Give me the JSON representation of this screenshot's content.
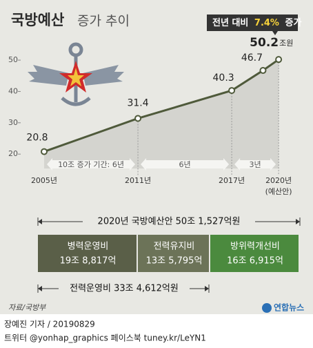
{
  "chart_data": {
    "type": "line",
    "title_bold": "국방예산",
    "title_light": "증가 추이",
    "callout": {
      "prefix": "전년 대비",
      "highlight": "7.4%",
      "suffix": "증가"
    },
    "x": [
      2005,
      2011,
      2017,
      2019,
      2020
    ],
    "values": [
      20.8,
      31.4,
      40.3,
      46.7,
      50.2
    ],
    "value_unit": "조원",
    "color": "#4f5a3b",
    "xlim": [
      2003.5,
      2020.7
    ],
    "xticks": [
      {
        "value": 2005,
        "label": "2005년"
      },
      {
        "value": 2011,
        "label": "2011년"
      },
      {
        "value": 2017,
        "label": "2017년"
      },
      {
        "value": 2020,
        "label": "2020년"
      }
    ],
    "xtick_note": "(예산안)",
    "ylim": [
      18.5,
      52
    ],
    "yticks": [
      20,
      30,
      40,
      50
    ],
    "periods": [
      {
        "label": "10조 증가 기간: 6년",
        "start": 2005,
        "end": 2011
      },
      {
        "label": "6년",
        "start": 2011,
        "end": 2017
      },
      {
        "label": "3년",
        "start": 2017,
        "end": 2020
      }
    ]
  },
  "budget": {
    "total": "2020년 국방예산안 50조 1,527억원",
    "items": [
      {
        "name": "병력운영비",
        "amount": "19조 8,817억",
        "color": "#5a5f48"
      },
      {
        "name": "전력유지비",
        "amount": "13조 5,795억",
        "color": "#6c7358"
      },
      {
        "name": "방위력개선비",
        "amount": "16조 6,915억",
        "color": "#4b8a3e"
      }
    ],
    "subtotal": "전력운영비 33조 4,612억원"
  },
  "source": "자료/국방부",
  "agency": "연합뉴스",
  "footer": {
    "byline": "장예진 기자 / 20190829",
    "links": "트위터 @yonhap_graphics  페이스북 tuney.kr/LeYN1"
  }
}
